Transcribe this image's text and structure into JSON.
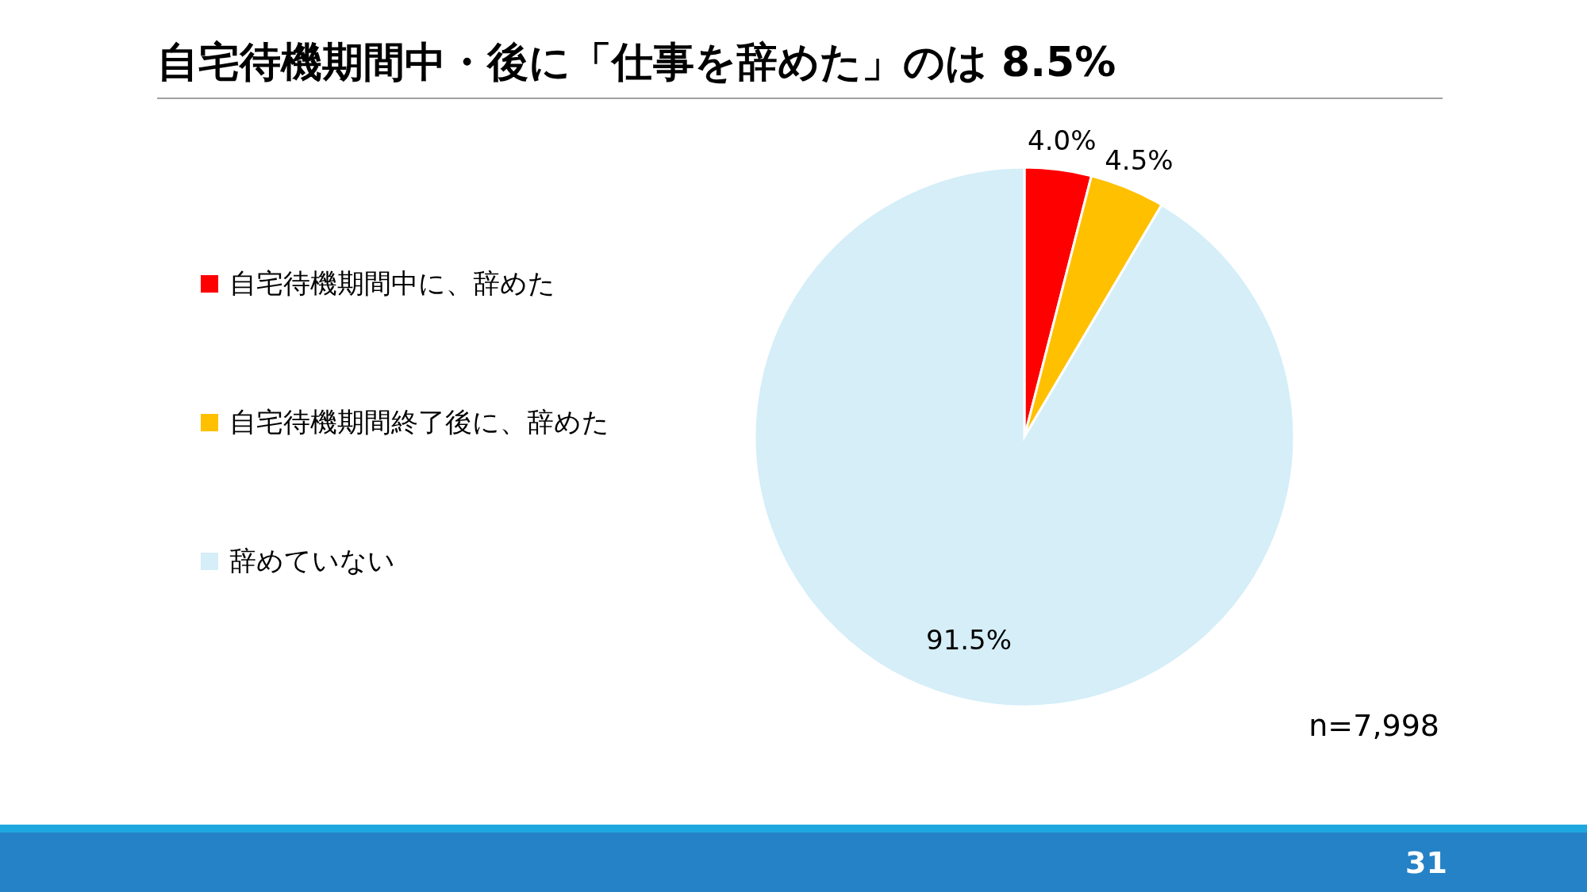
{
  "chart_data": {
    "type": "pie",
    "title": "自宅待機期間中・後に「仕事を辞めた」のは 8.5%",
    "categories": [
      "自宅待機期間中に、辞めた",
      "自宅待機期間終了後に、辞めた",
      "辞めていない"
    ],
    "values": [
      4.0,
      4.5,
      91.5
    ],
    "colors": [
      "#ff0000",
      "#ffc000",
      "#d5eef8"
    ],
    "value_labels": [
      "4.0%",
      "4.5%",
      "91.5%"
    ],
    "legend": "left",
    "annotations": [
      "n=7,998",
      "31"
    ]
  }
}
